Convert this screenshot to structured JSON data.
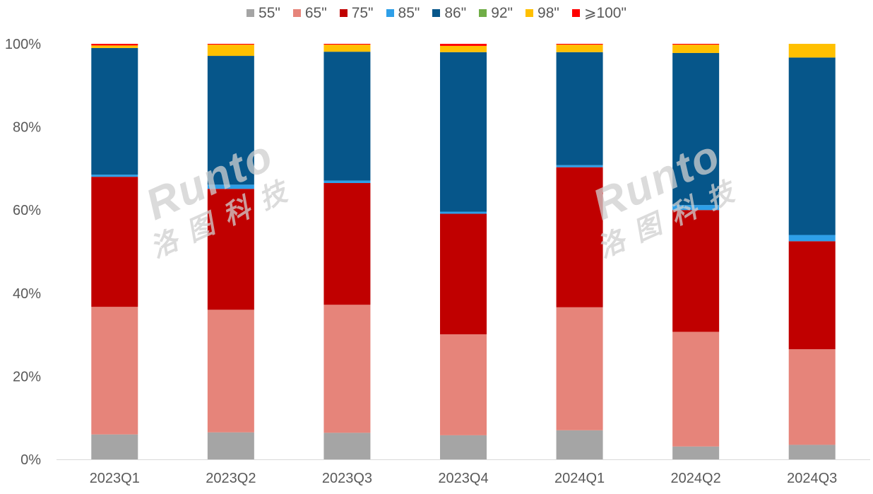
{
  "watermark": {
    "brand": "Runto",
    "cn": "洛图科技"
  },
  "chart_data": {
    "type": "bar",
    "stacked": true,
    "percent_axis": true,
    "categories": [
      "2023Q1",
      "2023Q2",
      "2023Q3",
      "2023Q4",
      "2024Q1",
      "2024Q2",
      "2024Q3"
    ],
    "yticks": [
      "0%",
      "20%",
      "40%",
      "60%",
      "80%",
      "100%"
    ],
    "ylim": [
      0,
      100
    ],
    "legend_position": "top",
    "series": [
      {
        "name": "55\"",
        "color": "#a5a5a5",
        "values": [
          6.0,
          6.5,
          6.4,
          5.8,
          7.0,
          3.1,
          3.5
        ]
      },
      {
        "name": "65\"",
        "color": "#e6847a",
        "values": [
          30.7,
          29.5,
          30.8,
          24.3,
          29.6,
          27.6,
          23.0
        ]
      },
      {
        "name": "75\"",
        "color": "#c00000",
        "values": [
          31.3,
          29.1,
          29.3,
          29.0,
          33.7,
          29.3,
          26.0
        ]
      },
      {
        "name": "85\"",
        "color": "#2e9fe8",
        "values": [
          0.5,
          1.0,
          0.6,
          0.5,
          0.5,
          1.2,
          1.5
        ]
      },
      {
        "name": "86\"",
        "color": "#06568a",
        "values": [
          30.5,
          31.0,
          31.0,
          38.4,
          27.2,
          36.6,
          42.7
        ]
      },
      {
        "name": "92\"",
        "color": "#70ad47",
        "values": [
          0.0,
          0.0,
          0.0,
          0.0,
          0.0,
          0.0,
          0.0
        ]
      },
      {
        "name": "98\"",
        "color": "#ffc000",
        "values": [
          0.6,
          2.7,
          1.7,
          1.5,
          1.8,
          2.0,
          3.3
        ]
      },
      {
        "name": "⩾100\"",
        "color": "#ff0000",
        "values": [
          0.4,
          0.2,
          0.2,
          0.5,
          0.2,
          0.2,
          0.0
        ]
      }
    ]
  }
}
